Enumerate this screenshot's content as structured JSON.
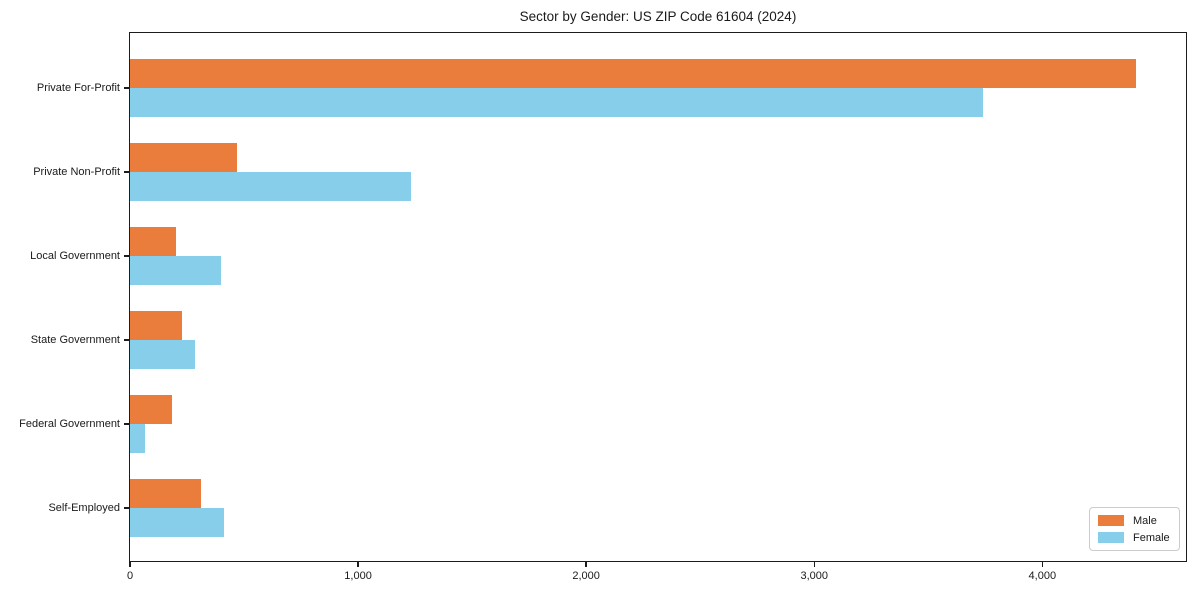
{
  "chart_data": {
    "type": "bar",
    "orientation": "horizontal",
    "title": "Sector by Gender: US ZIP Code 61604 (2024)",
    "categories": [
      "Private For-Profit",
      "Private Non-Profit",
      "Local Government",
      "State Government",
      "Federal Government",
      "Self-Employed"
    ],
    "series": [
      {
        "name": "Male",
        "color": "#EB7D3C",
        "values": [
          4410,
          470,
          200,
          230,
          185,
          310
        ]
      },
      {
        "name": "Female",
        "color": "#87CEEB",
        "values": [
          3740,
          1230,
          400,
          285,
          65,
          410
        ]
      }
    ],
    "xlabel": "",
    "ylabel": "",
    "xlim": [
      0,
      4630
    ],
    "x_ticks": [
      {
        "value": 0,
        "label": "0"
      },
      {
        "value": 1000,
        "label": "1,000"
      },
      {
        "value": 2000,
        "label": "2,000"
      },
      {
        "value": 3000,
        "label": "3,000"
      },
      {
        "value": 4000,
        "label": "4,000"
      }
    ],
    "grid": false,
    "legend_position": "lower right"
  }
}
